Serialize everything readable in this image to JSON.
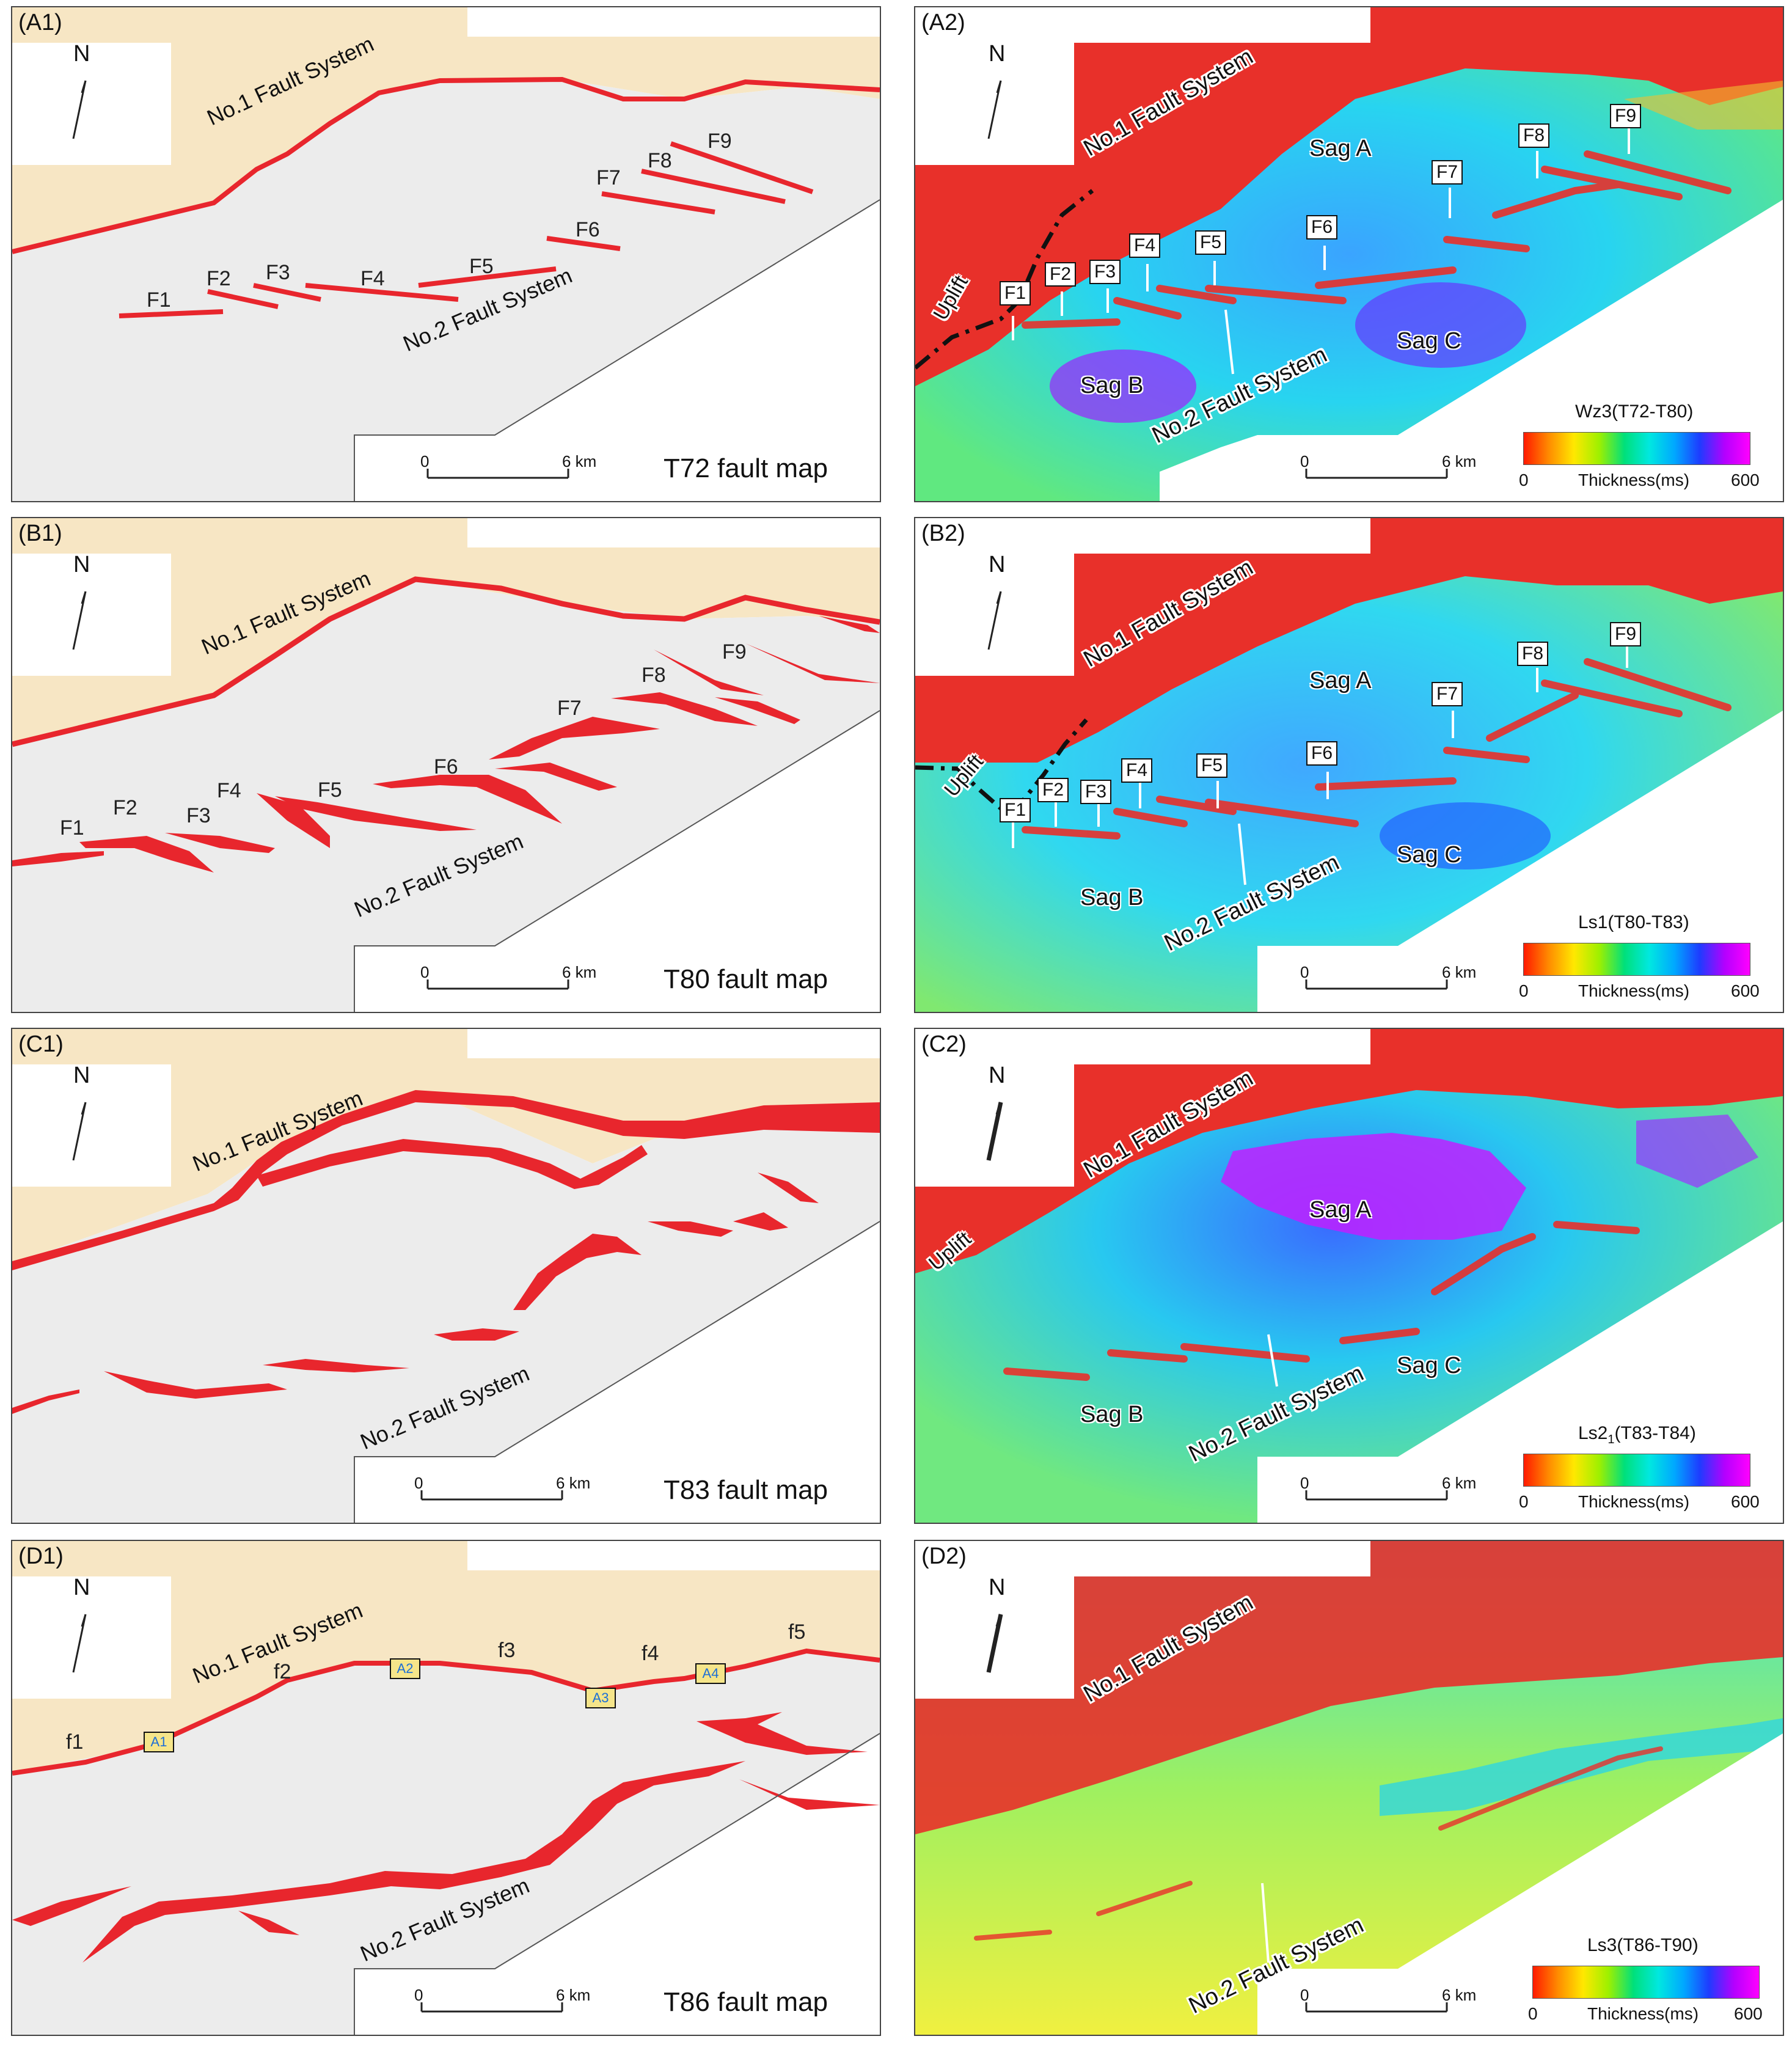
{
  "panels": {
    "A1": {
      "label": "(A1)",
      "title": "T72 fault map",
      "no1": "No.1 Fault System",
      "no2": "No.2 Fault System",
      "faults": [
        "F1",
        "F2",
        "F3",
        "F4",
        "F5",
        "F6",
        "F7",
        "F8",
        "F9"
      ]
    },
    "B1": {
      "label": "(B1)",
      "title": "T80 fault map",
      "no1": "No.1 Fault System",
      "no2": "No.2 Fault System",
      "faults": [
        "F1",
        "F2",
        "F3",
        "F4",
        "F5",
        "F6",
        "F7",
        "F8",
        "F9"
      ]
    },
    "C1": {
      "label": "(C1)",
      "title": "T83 fault map",
      "no1": "No.1 Fault System",
      "no2": "No.2 Fault System"
    },
    "D1": {
      "label": "(D1)",
      "title": "T86 fault map",
      "no1": "No.1 Fault System",
      "no2": "No.2 Fault System",
      "segments": [
        "f1",
        "f2",
        "f3",
        "f4",
        "f5"
      ],
      "boxes": [
        "A1",
        "A2",
        "A3",
        "A4"
      ]
    },
    "A2": {
      "label": "(A2)",
      "legend_title": "Wz3(T72-T80)",
      "uplift": "Uplift",
      "no1": "No.1 Fault System",
      "no2": "No.2 Fault System",
      "sags": [
        "Sag A",
        "Sag B",
        "Sag C"
      ],
      "faults": [
        "F1",
        "F2",
        "F3",
        "F4",
        "F5",
        "F6",
        "F7",
        "F8",
        "F9"
      ]
    },
    "B2": {
      "label": "(B2)",
      "legend_title": "Ls1(T80-T83)",
      "uplift": "Uplift",
      "no1": "No.1 Fault System",
      "no2": "No.2 Fault System",
      "sags": [
        "Sag A",
        "Sag B",
        "Sag C"
      ],
      "faults": [
        "F1",
        "F2",
        "F3",
        "F4",
        "F5",
        "F6",
        "F7",
        "F8",
        "F9"
      ]
    },
    "C2": {
      "label": "(C2)",
      "legend_title_main": "Ls2",
      "legend_title_sub": "1",
      "legend_title_tail": "(T83-T84)",
      "uplift": "Uplift",
      "no1": "No.1 Fault System",
      "no2": "No.2 Fault System",
      "sags": [
        "Sag A",
        "Sag B",
        "Sag C"
      ]
    },
    "D2": {
      "label": "(D2)",
      "legend_title": "Ls3(T86-T90)",
      "no1": "No.1 Fault System",
      "no2": "No.2 Fault System"
    }
  },
  "common": {
    "north": "N",
    "scale_zero": "0",
    "scale_end": "6 km",
    "colorbar_min": "0",
    "colorbar_label": "Thickness(ms)",
    "colorbar_max": "600"
  },
  "colors": {
    "fault": "#e8262d",
    "uplift_area": "#f7e6c4",
    "basin_area": "#ececec",
    "uplift_red": "#e8302a"
  }
}
